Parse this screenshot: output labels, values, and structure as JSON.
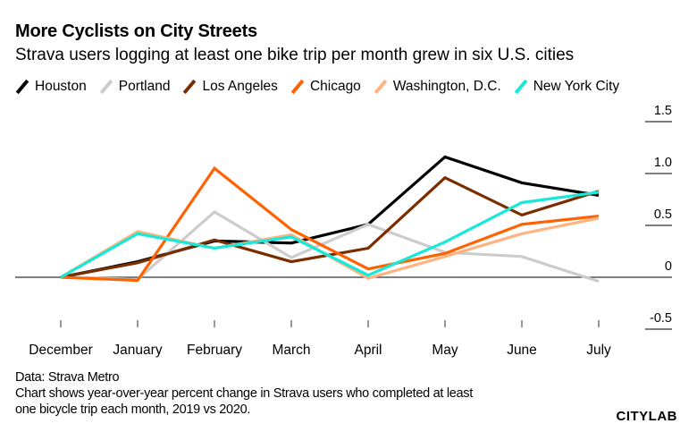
{
  "chart_data": {
    "type": "line",
    "title": "More Cyclists on City Streets",
    "subtitle": "Strava users logging at least one bike trip per month grew in six U.S. cities",
    "xlabel": "",
    "ylabel": "",
    "categories": [
      "December",
      "January",
      "February",
      "March",
      "April",
      "May",
      "June",
      "July"
    ],
    "yticks": [
      1.5,
      1.0,
      0.5,
      0,
      -0.5
    ],
    "ytick_labels": [
      "1.5",
      "1.0",
      "0.5",
      "0",
      "-0.5"
    ],
    "ylim": [
      -0.5,
      1.5
    ],
    "grid": false,
    "legend_position": "top",
    "series": [
      {
        "name": "Houston",
        "color": "#000000",
        "values": [
          0,
          0.15,
          0.35,
          0.33,
          0.51,
          1.16,
          0.91,
          0.79
        ]
      },
      {
        "name": "Portland",
        "color": "#cccccc",
        "values": [
          0,
          -0.02,
          0.63,
          0.19,
          0.51,
          0.24,
          0.2,
          -0.04
        ]
      },
      {
        "name": "Los Angeles",
        "color": "#7a2e00",
        "values": [
          0,
          0.14,
          0.36,
          0.15,
          0.28,
          0.96,
          0.6,
          0.83
        ]
      },
      {
        "name": "Chicago",
        "color": "#ff6200",
        "values": [
          0,
          -0.03,
          1.05,
          0.46,
          0.08,
          0.23,
          0.51,
          0.59
        ]
      },
      {
        "name": "Washington, D.C.",
        "color": "#ffb380",
        "values": [
          0,
          0.44,
          0.28,
          0.41,
          -0.01,
          0.2,
          0.42,
          0.57
        ]
      },
      {
        "name": "New York City",
        "color": "#17e8d8",
        "values": [
          0,
          0.42,
          0.28,
          0.39,
          0.02,
          0.34,
          0.72,
          0.82
        ]
      }
    ]
  },
  "footer": {
    "source": "Data: Strava Metro",
    "note_line1": "Chart shows year-over-year percent change in Strava users who completed at least",
    "note_line2": "one bicycle trip each month, 2019 vs 2020.",
    "brand": "CITYLAB"
  }
}
